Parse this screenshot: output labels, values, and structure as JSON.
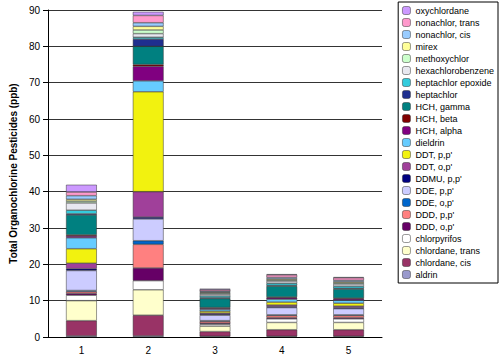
{
  "chart_data": {
    "type": "bar",
    "stacked": true,
    "grid": true,
    "legend": "right",
    "ylabel": "Total Organochlorine Pesticides (ppb)",
    "categories": [
      "1",
      "2",
      "3",
      "4",
      "5"
    ],
    "ylim": [
      0,
      90
    ],
    "yticks": [
      0,
      10,
      20,
      30,
      40,
      50,
      60,
      70,
      80,
      90
    ],
    "series": [
      {
        "name": "aldrin",
        "color": "#9999cc",
        "values": [
          0.3,
          0.3,
          0.2,
          0.2,
          0.2
        ]
      },
      {
        "name": "chlordane, cis",
        "color": "#993366",
        "values": [
          4.2,
          5.7,
          1.3,
          1.8,
          1.8
        ]
      },
      {
        "name": "chlordane, trans",
        "color": "#ffffcc",
        "values": [
          5.5,
          7,
          1.5,
          2,
          2
        ]
      },
      {
        "name": "chlorpyrifos",
        "color": "#ffffff",
        "values": [
          1.5,
          2.5,
          0.5,
          1,
          1
        ]
      },
      {
        "name": "DDD, o,p'",
        "color": "#660066",
        "values": [
          0.5,
          3.5,
          0.3,
          0.3,
          0.3
        ]
      },
      {
        "name": "DDD, p,p'",
        "color": "#ff8080",
        "values": [
          0.5,
          6.5,
          0.5,
          0.6,
          0.6
        ]
      },
      {
        "name": "DDE, o,p'",
        "color": "#0066cc",
        "values": [
          0.3,
          1,
          0.2,
          0.2,
          0.2
        ]
      },
      {
        "name": "DDE, p,p'",
        "color": "#ccccff",
        "values": [
          5.5,
          6,
          1.5,
          2,
          1.7
        ]
      },
      {
        "name": "DDMU, p,p'",
        "color": "#000080",
        "values": [
          0.5,
          0.5,
          0.3,
          0.3,
          0.3
        ]
      },
      {
        "name": "DDT, o,p'",
        "color": "#a0409a",
        "values": [
          1.5,
          7,
          0.3,
          0.4,
          0.4
        ]
      },
      {
        "name": "DDT, p,p'",
        "color": "#f2f20f",
        "values": [
          4,
          27.5,
          0.5,
          0.8,
          0.8
        ]
      },
      {
        "name": "dieldrin",
        "color": "#66ccff",
        "values": [
          3,
          3,
          0.5,
          0.8,
          0.8
        ]
      },
      {
        "name": "HCH, alpha",
        "color": "#800080",
        "values": [
          0.5,
          4,
          0.3,
          0.4,
          0.4
        ]
      },
      {
        "name": "HCH, beta",
        "color": "#800000",
        "values": [
          0.3,
          0.5,
          0.2,
          0.2,
          0.2
        ]
      },
      {
        "name": "HCH, gamma",
        "color": "#008080",
        "values": [
          5.5,
          5,
          2.5,
          3,
          2.5
        ]
      },
      {
        "name": "heptachlor",
        "color": "#1f2f8f",
        "values": [
          0.3,
          2,
          0.2,
          0.2,
          0.2
        ]
      },
      {
        "name": "heptachlor epoxide",
        "color": "#33ccdd",
        "values": [
          1,
          0.5,
          0.5,
          0.6,
          0.6
        ]
      },
      {
        "name": "hexachlorobenzene",
        "color": "#e8e8f0",
        "values": [
          2,
          1,
          0.5,
          0.6,
          0.6
        ]
      },
      {
        "name": "methoxychlor",
        "color": "#ccffcc",
        "values": [
          0.5,
          1,
          0.3,
          0.3,
          0.3
        ]
      },
      {
        "name": "mirex",
        "color": "#ffff99",
        "values": [
          0.5,
          1,
          0.2,
          0.3,
          0.3
        ]
      },
      {
        "name": "nonachlor, cis",
        "color": "#99ccff",
        "values": [
          1,
          1,
          0.3,
          0.4,
          0.4
        ]
      },
      {
        "name": "nonachlor, trans",
        "color": "#ff99cc",
        "values": [
          1,
          2,
          0.4,
          0.7,
          0.7
        ]
      },
      {
        "name": "oxychlordane",
        "color": "#cc99ff",
        "values": [
          2,
          1,
          0.3,
          0.2,
          0.2
        ]
      }
    ]
  }
}
